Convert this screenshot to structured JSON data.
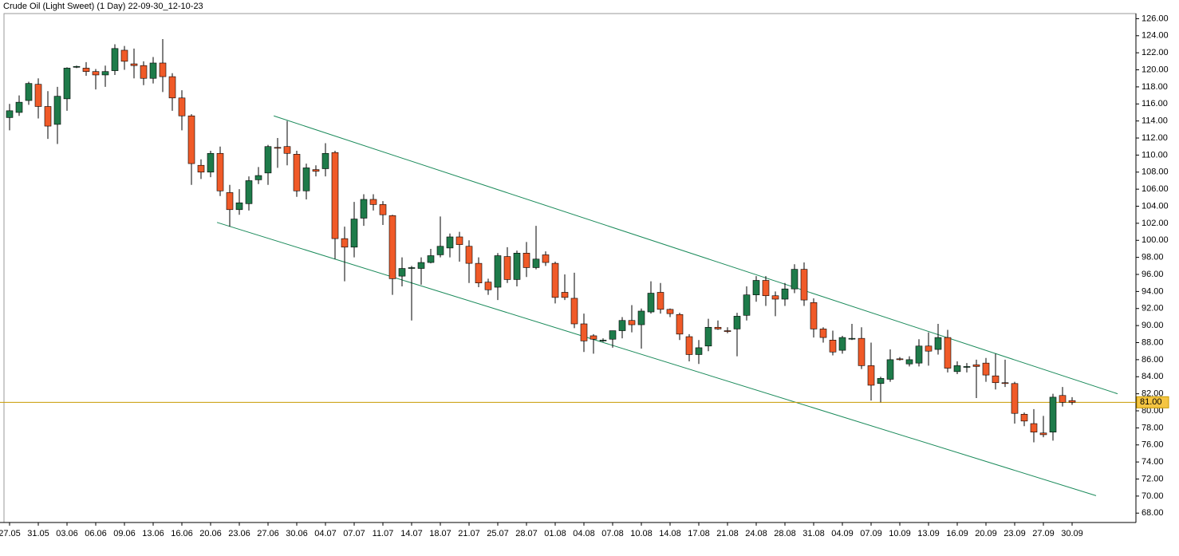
{
  "chart_data": {
    "type": "candlestick",
    "title": "Crude Oil (Light Sweet) (1 Day) 22-09-30_12-10-23",
    "categories": [
      "27.05",
      null,
      null,
      "31.05",
      null,
      null,
      "03.06",
      null,
      null,
      "06.06",
      null,
      null,
      "09.06",
      null,
      null,
      "13.06",
      null,
      null,
      "16.06",
      null,
      null,
      "20.06",
      null,
      null,
      "23.06",
      null,
      null,
      "27.06",
      null,
      null,
      "30.06",
      null,
      null,
      "04.07",
      null,
      null,
      "07.07",
      null,
      null,
      "11.07",
      null,
      null,
      "14.07",
      null,
      null,
      "18.07",
      null,
      null,
      "21.07",
      null,
      null,
      "25.07",
      null,
      null,
      "28.07",
      null,
      null,
      "01.08",
      null,
      null,
      "04.08",
      null,
      null,
      "07.08",
      null,
      null,
      "10.08",
      null,
      null,
      "14.08",
      null,
      null,
      "17.08",
      null,
      null,
      "21.08",
      null,
      null,
      "24.08",
      null,
      null,
      "28.08",
      null,
      null,
      "31.08",
      null,
      null,
      "04.09",
      null,
      null,
      "07.09",
      null,
      null,
      "10.09",
      null,
      null,
      "13.09",
      null,
      null,
      "16.09",
      null,
      null,
      "20.09",
      null,
      null,
      "23.09",
      null,
      null,
      "27.09",
      null,
      null,
      "30.09"
    ],
    "open": [
      114.4,
      115.0,
      116.4,
      118.3,
      115.7,
      113.6,
      116.6,
      120.3,
      120.2,
      119.8,
      119.4,
      119.9,
      122.3,
      120.7,
      120.5,
      119,
      120.8,
      119.2,
      116.7,
      114.6,
      108.8,
      108,
      110.2,
      105.6,
      103.6,
      104.3,
      107.1,
      107.9,
      110.9,
      111,
      110.1,
      105.8,
      108.3,
      108.4,
      110.3,
      100.2,
      99.2,
      102.6,
      104.8,
      104.2,
      102.9,
      95.8,
      96.7,
      96.7,
      97.4,
      98.3,
      99.1,
      100.4,
      99.3,
      97.3,
      95.1,
      94.5,
      98.1,
      95.4,
      98.5,
      96.8,
      98.3,
      97.3,
      93.9,
      93.2,
      90.2,
      88.8,
      88.3,
      88.4,
      89.4,
      90.6,
      90.1,
      91.6,
      93.9,
      91.9,
      91.3,
      88.7,
      86.6,
      87.6,
      89.8,
      89.4,
      89.6,
      91.2,
      93.6,
      95.3,
      93.5,
      93.1,
      94.3,
      96.6,
      92.7,
      89.6,
      88.3,
      87.1,
      88.5,
      88.5,
      85.3,
      83.2,
      83.7,
      86.1,
      85.5,
      85.6,
      87.6,
      87.2,
      88.6,
      84.6,
      85.1,
      85.4,
      85.6,
      84.1,
      83.3,
      83.2,
      79.6,
      78.5,
      77.4,
      77.5,
      81.8,
      81.2
    ],
    "close": [
      115.2,
      116.2,
      118.4,
      115.7,
      113.4,
      116.9,
      120.2,
      120.4,
      119.8,
      119.4,
      119.8,
      122.5,
      121,
      120.5,
      119,
      120.8,
      119.2,
      116.7,
      114.6,
      109,
      108,
      110.2,
      105.8,
      103.6,
      104.4,
      107,
      107.6,
      111,
      110.8,
      110.2,
      105.8,
      108.5,
      108.1,
      110.2,
      100.2,
      99.2,
      102.5,
      104.8,
      104.2,
      103,
      95.5,
      96.7,
      96.8,
      97.4,
      98.2,
      99.3,
      100.4,
      99.5,
      97.3,
      95,
      94.2,
      98.2,
      95.4,
      98.5,
      96.8,
      97.8,
      97.4,
      93.3,
      93.3,
      90.2,
      88.2,
      88.4,
      88.3,
      89.4,
      90.6,
      90.1,
      91.7,
      93.8,
      91.9,
      91.4,
      89,
      86.6,
      87.4,
      89.8,
      89.6,
      89.3,
      91.1,
      93.6,
      95.3,
      93.5,
      93.1,
      94.3,
      96.6,
      93,
      89.6,
      88.6,
      86.9,
      88.6,
      88.5,
      85.3,
      83,
      83.8,
      86,
      86,
      86,
      87.6,
      87,
      88.6,
      85,
      85.3,
      85.2,
      85.2,
      84.2,
      83.3,
      83.2,
      79.7,
      78.8,
      77.5,
      77.2,
      81.6,
      81,
      81
    ],
    "high": [
      116,
      117,
      118.6,
      119,
      117.5,
      118,
      120.3,
      120.5,
      120.9,
      120.1,
      120.5,
      123,
      122.8,
      122.5,
      121,
      121.5,
      123.6,
      119.6,
      117.6,
      114.8,
      109.5,
      110.5,
      111,
      106.5,
      106,
      107.5,
      108.6,
      111.2,
      112,
      114,
      110.5,
      109,
      108.8,
      111.4,
      110.5,
      101.6,
      104.5,
      105.4,
      105.4,
      104.6,
      103,
      98,
      97,
      98,
      99,
      102.8,
      100.8,
      101,
      100,
      98,
      95.5,
      98.5,
      99.2,
      98.8,
      99.8,
      101.7,
      98.7,
      97.5,
      96,
      96.2,
      91.4,
      89,
      88.5,
      89.4,
      91,
      92.4,
      92,
      95.2,
      95,
      92,
      91.5,
      89,
      88.3,
      90.8,
      90.6,
      89.8,
      91.5,
      94.6,
      95.8,
      95.8,
      94,
      95,
      97.2,
      97.4,
      93.2,
      89.8,
      89.4,
      88.8,
      90.2,
      89.8,
      88,
      84,
      87.2,
      86.3,
      86.4,
      88.4,
      89.2,
      90.2,
      89.5,
      85.8,
      85.6,
      86,
      86.2,
      86.7,
      86,
      83.4,
      79.8,
      80.2,
      79.4,
      82,
      82.8,
      81.6
    ],
    "low": [
      112.9,
      114.6,
      115.9,
      114.3,
      111.9,
      111.3,
      115.2,
      120.2,
      119.3,
      117.7,
      118,
      119.4,
      120,
      119,
      118.2,
      118.4,
      117.4,
      115.2,
      112.9,
      106.5,
      107.2,
      107.4,
      105.2,
      101.6,
      103,
      103.5,
      106.6,
      106.5,
      108.5,
      108.8,
      105.1,
      104.8,
      107.5,
      107.5,
      97.8,
      95.2,
      98,
      101.7,
      103.5,
      101.8,
      93.6,
      94.6,
      90.6,
      94.8,
      97.3,
      98,
      98,
      97.5,
      95,
      94.5,
      93.6,
      93,
      95,
      94.6,
      95.7,
      96.6,
      97,
      92.6,
      93,
      89.7,
      86.9,
      86.7,
      88.1,
      87.4,
      88.5,
      89.2,
      87.3,
      91.4,
      91.4,
      91,
      88.3,
      85.8,
      85.5,
      87,
      89.5,
      89.1,
      86.4,
      90.6,
      92.8,
      92.3,
      91.1,
      92.3,
      93.8,
      92.3,
      88.6,
      88,
      86.5,
      86.7,
      88.3,
      84.9,
      81.2,
      81,
      83.4,
      85.9,
      85.2,
      85.2,
      85.3,
      86.6,
      84.5,
      84.3,
      84.5,
      81.5,
      83.4,
      82.5,
      82.8,
      78.5,
      78.2,
      76.3,
      76.9,
      76.5,
      80.5,
      80.7
    ],
    "up_color": "#1e7b4a",
    "down_color": "#f05a28",
    "ylim": [
      66.9,
      126.6
    ],
    "yticks": [
      {
        "value": 68,
        "label": "68.00"
      },
      {
        "value": 70,
        "label": "70.00"
      },
      {
        "value": 72,
        "label": "72.00"
      },
      {
        "value": 74,
        "label": "74.00"
      },
      {
        "value": 76,
        "label": "76.00"
      },
      {
        "value": 78,
        "label": "78.00"
      },
      {
        "value": 80,
        "label": "80.00"
      },
      {
        "value": 82,
        "label": "82.00"
      },
      {
        "value": 84,
        "label": "84.00"
      },
      {
        "value": 86,
        "label": "86.00"
      },
      {
        "value": 88,
        "label": "88.00"
      },
      {
        "value": 90,
        "label": "90.00"
      },
      {
        "value": 92,
        "label": "92.00"
      },
      {
        "value": 94,
        "label": "94.00"
      },
      {
        "value": 96,
        "label": "96.00"
      },
      {
        "value": 98,
        "label": "98.00"
      },
      {
        "value": 100,
        "label": "100.00"
      },
      {
        "value": 102,
        "label": "102.00"
      },
      {
        "value": 104,
        "label": "104.00"
      },
      {
        "value": 106,
        "label": "106.00"
      },
      {
        "value": 108,
        "label": "108.00"
      },
      {
        "value": 110,
        "label": "110.00"
      },
      {
        "value": 112,
        "label": "112.00"
      },
      {
        "value": 114,
        "label": "114.00"
      },
      {
        "value": 116,
        "label": "116.00"
      },
      {
        "value": 118,
        "label": "118.00"
      },
      {
        "value": 120,
        "label": "120.00"
      },
      {
        "value": 122,
        "label": "122.00"
      },
      {
        "value": 124,
        "label": "124.00"
      },
      {
        "value": 126,
        "label": "126.00"
      }
    ],
    "hline": {
      "value": 81,
      "label": "81.00",
      "color": "#c89a00"
    },
    "trend_lines": [
      {
        "color": "#1a8a5a",
        "start": [
          27.6,
          114.6
        ],
        "end": [
          115.75,
          82.0
        ]
      },
      {
        "color": "#1a8a5a",
        "start": [
          21.67,
          102.1
        ],
        "end": [
          113.5,
          70.05
        ]
      }
    ],
    "grid": false
  }
}
